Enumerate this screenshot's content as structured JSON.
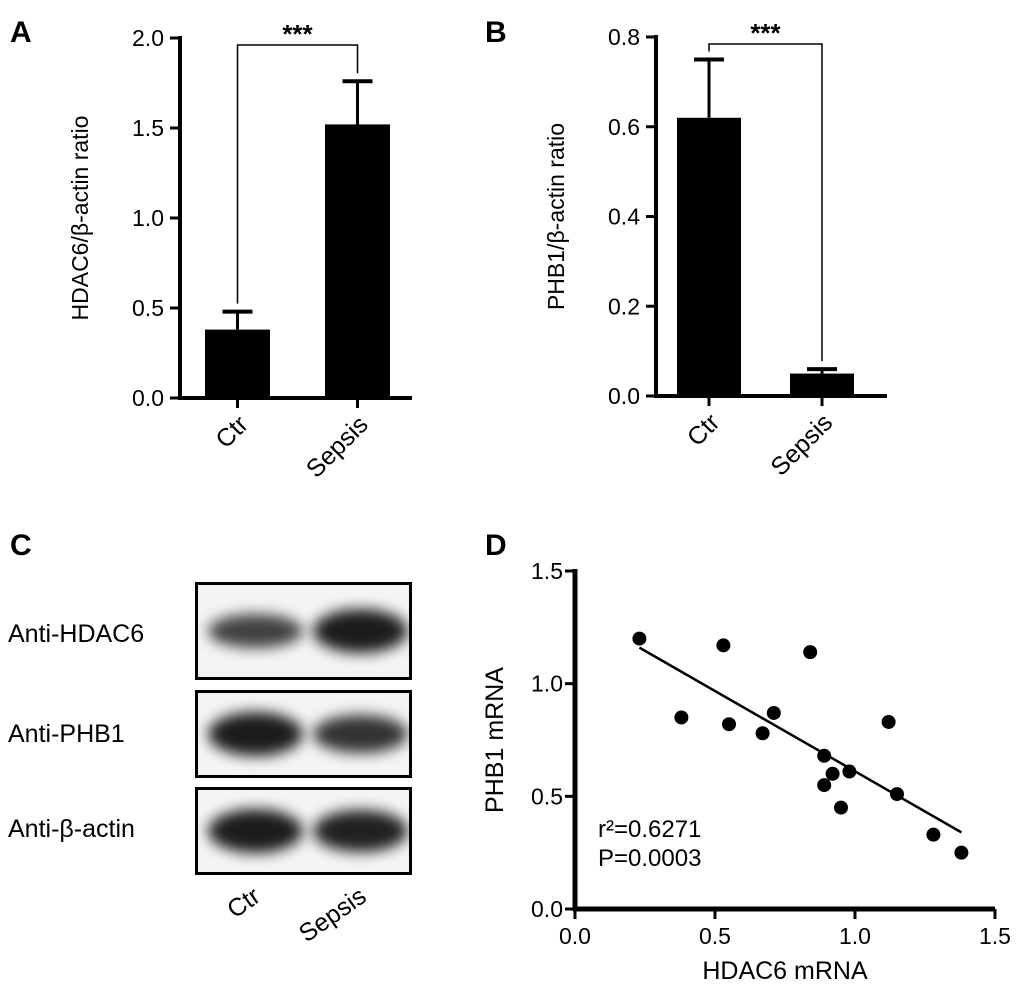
{
  "panels": {
    "a": "A",
    "b": "B",
    "c": "C",
    "d": "D"
  },
  "chart_data": [
    {
      "type": "bar",
      "panel": "A",
      "categories": [
        "Ctr",
        "Sepsis"
      ],
      "values": [
        0.38,
        1.52
      ],
      "errors_upper": [
        0.48,
        1.76
      ],
      "ylabel": "HDAC6/β-actin ratio",
      "ylim": [
        0,
        2.0
      ],
      "yticks": [
        "0.0",
        "0.5",
        "1.0",
        "1.5",
        "2.0"
      ],
      "significance": "***"
    },
    {
      "type": "bar",
      "panel": "B",
      "categories": [
        "Ctr",
        "Sepsis"
      ],
      "values": [
        0.62,
        0.05
      ],
      "errors_upper": [
        0.75,
        0.06
      ],
      "ylabel": "PHB1/β-actin ratio",
      "ylim": [
        0,
        0.8
      ],
      "yticks": [
        "0.0",
        "0.2",
        "0.4",
        "0.6",
        "0.8"
      ],
      "significance": "***"
    },
    {
      "type": "scatter",
      "panel": "D",
      "xlabel": "HDAC6 mRNA",
      "ylabel": "PHB1 mRNA",
      "xlim": [
        0,
        1.5
      ],
      "ylim": [
        0,
        1.5
      ],
      "xticks": [
        "0.0",
        "0.5",
        "1.0",
        "1.5"
      ],
      "yticks": [
        "0.0",
        "0.5",
        "1.0",
        "1.5"
      ],
      "points": [
        [
          0.23,
          1.2
        ],
        [
          0.38,
          0.85
        ],
        [
          0.53,
          1.17
        ],
        [
          0.55,
          0.82
        ],
        [
          0.67,
          0.78
        ],
        [
          0.71,
          0.87
        ],
        [
          0.84,
          1.14
        ],
        [
          0.89,
          0.68
        ],
        [
          0.89,
          0.55
        ],
        [
          0.92,
          0.6
        ],
        [
          0.95,
          0.45
        ],
        [
          0.98,
          0.61
        ],
        [
          1.12,
          0.83
        ],
        [
          1.15,
          0.51
        ],
        [
          1.28,
          0.33
        ],
        [
          1.38,
          0.25
        ]
      ],
      "fit_line": [
        [
          0.23,
          1.16
        ],
        [
          1.38,
          0.34
        ]
      ],
      "annotations": [
        "r²=0.6271",
        "P=0.0003"
      ]
    }
  ],
  "blot": {
    "rows": [
      "Anti-HDAC6",
      "Anti-PHB1",
      "Anti-β-actin"
    ],
    "lanes": [
      "Ctr",
      "Sepsis"
    ],
    "intensity": [
      [
        0.6,
        1.0
      ],
      [
        1.0,
        0.75
      ],
      [
        1.0,
        0.95
      ]
    ]
  }
}
